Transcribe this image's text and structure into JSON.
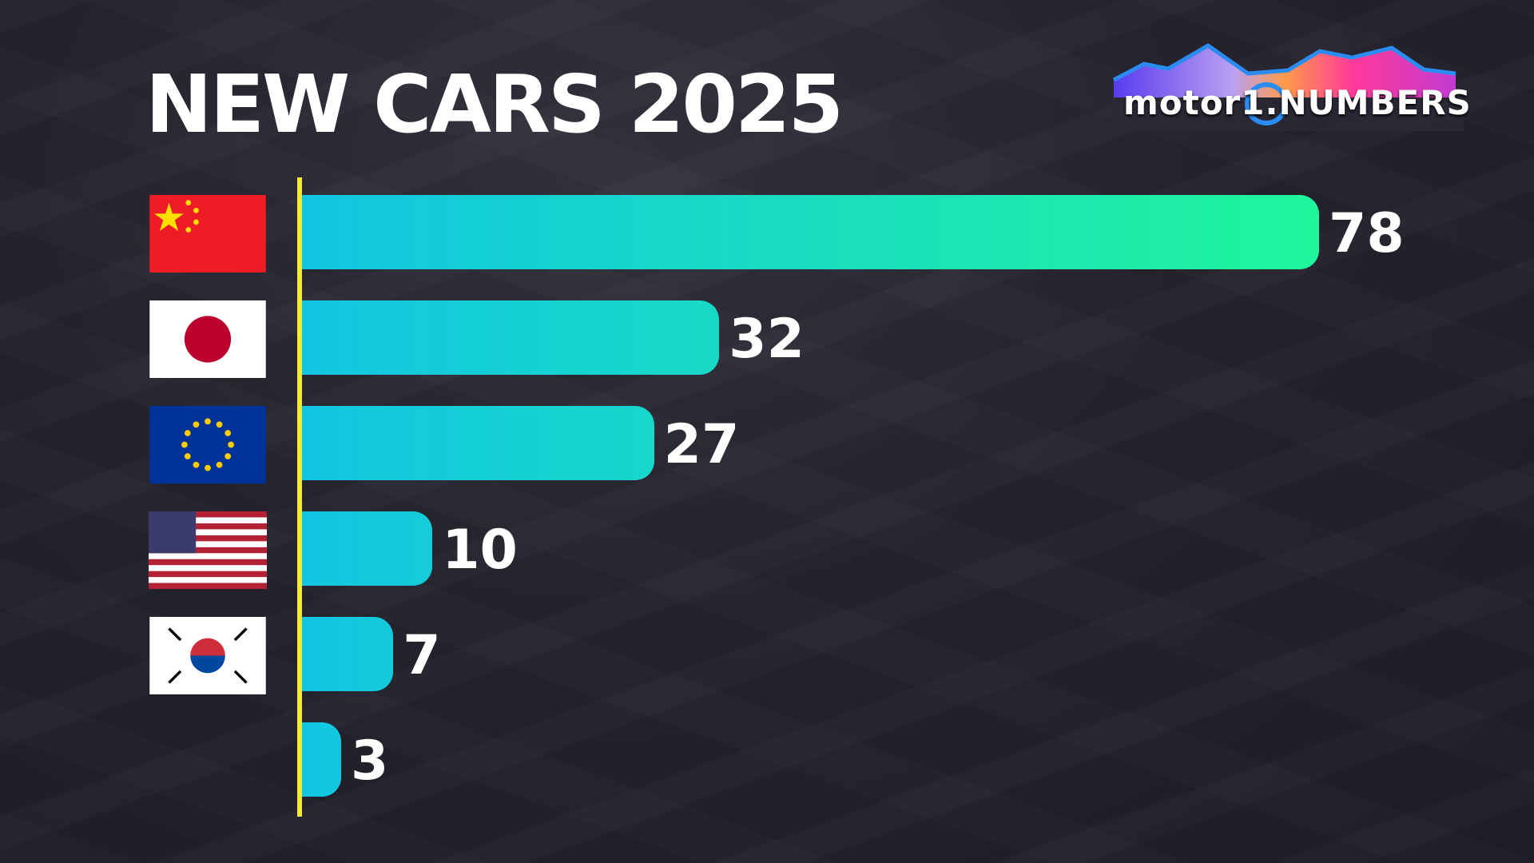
{
  "header": {
    "title": "NEW CARS 2025"
  },
  "logo": {
    "text": "motor1.NUMBERS"
  },
  "colors": {
    "bar_start": "#12c6e2",
    "bar_end": "#20f59c",
    "axis": "#f4ea3a"
  },
  "chart_data": {
    "type": "bar",
    "orientation": "horizontal",
    "title": "NEW CARS 2025",
    "categories": [
      "China",
      "Japan",
      "European Union",
      "United States",
      "South Korea",
      "(no flag)"
    ],
    "values": [
      78,
      32,
      27,
      10,
      7,
      3
    ],
    "value_labels": [
      "78",
      "32",
      "27",
      "10",
      "7",
      "3"
    ],
    "xlim": [
      0,
      78
    ],
    "grid": false,
    "legend": "none"
  }
}
